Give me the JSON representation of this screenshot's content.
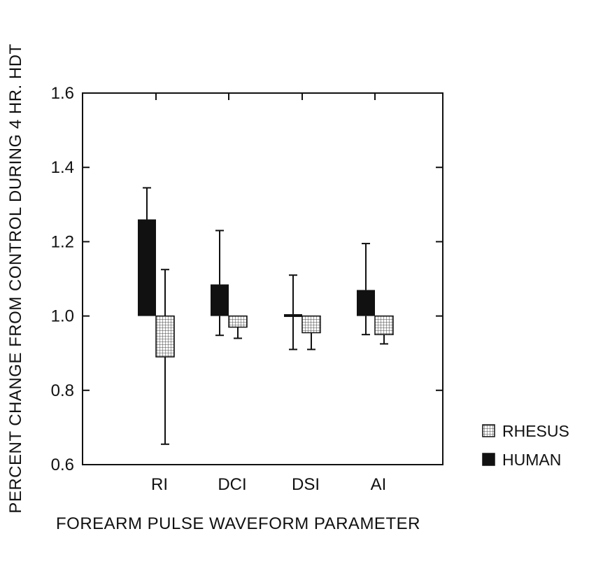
{
  "chart_data": {
    "type": "bar",
    "title": "",
    "xlabel": "FOREARM PULSE WAVEFORM PARAMETER",
    "ylabel": "PERCENT CHANGE FROM CONTROL DURING 4 HR. HDT",
    "categories": [
      "RI",
      "DCI",
      "DSI",
      "AI"
    ],
    "baseline": 1.0,
    "ylim": [
      0.6,
      1.6
    ],
    "yticks": [
      "0.6",
      "0.8",
      "1.0",
      "1.2",
      "1.4",
      "1.6"
    ],
    "series": [
      {
        "name": "HUMAN",
        "fill": "solid-black",
        "values": [
          1.26,
          1.085,
          1.005,
          1.07
        ],
        "error_upper": [
          1.345,
          1.23,
          1.11,
          1.195
        ],
        "error_lower": [
          null,
          0.948,
          0.91,
          0.95
        ]
      },
      {
        "name": "RHESUS",
        "fill": "crosshatch",
        "values": [
          0.89,
          0.97,
          0.955,
          0.95
        ],
        "error_upper": [
          1.125,
          null,
          null,
          null
        ],
        "error_lower": [
          0.655,
          0.94,
          0.91,
          0.925
        ]
      }
    ],
    "legend": {
      "placement": "right",
      "entries": [
        "RHESUS",
        "HUMAN"
      ]
    },
    "grid": false
  },
  "colors": {
    "human": "#111111",
    "rhesus_fill": "#ffffff",
    "rhesus_hatch": "#444444",
    "axis": "#111111"
  }
}
